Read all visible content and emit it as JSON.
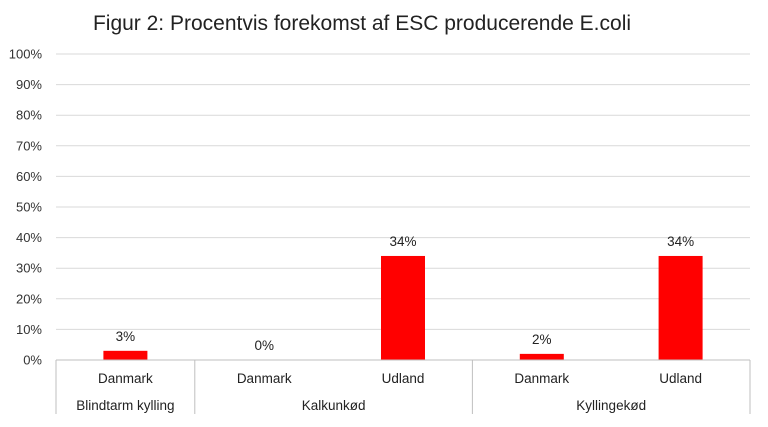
{
  "chart_data": {
    "type": "bar",
    "title": "Figur 2: Procentvis forekomst af ESC producerende E.coli",
    "categories": [
      "Danmark",
      "Danmark",
      "Udland",
      "Danmark",
      "Udland"
    ],
    "groups": [
      {
        "label": "Blindtarm kylling",
        "span": 1
      },
      {
        "label": "Kalkunkød",
        "span": 2
      },
      {
        "label": "Kyllingekød",
        "span": 2
      }
    ],
    "values": [
      3,
      0,
      34,
      2,
      34
    ],
    "data_labels": [
      "3%",
      "0%",
      "34%",
      "2%",
      "34%"
    ],
    "ylim": [
      0,
      100
    ],
    "y_ticks": [
      "0%",
      "10%",
      "20%",
      "30%",
      "40%",
      "50%",
      "60%",
      "70%",
      "80%",
      "90%",
      "100%"
    ],
    "grid": true,
    "bar_color": "#ff0000",
    "grid_color": "#d9d9d9"
  }
}
